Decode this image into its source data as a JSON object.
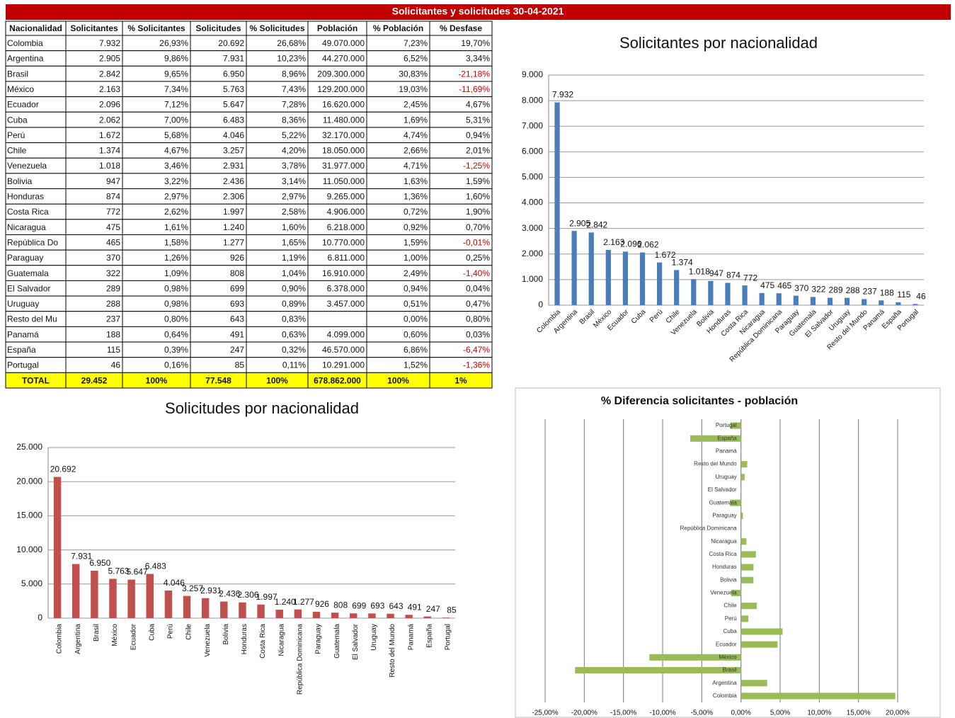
{
  "table": {
    "title": "Solicitantes y solicitudes 30-04-2021",
    "columns": [
      "Nacionalidad",
      "Solicitantes",
      "% Solicitantes",
      "Solicitudes",
      "% Solicitudes",
      "Población",
      "% Población",
      "% Desfase"
    ],
    "rows": [
      [
        "Colombia",
        "7.932",
        "26,93%",
        "20.692",
        "26,68%",
        "49.070.000",
        "7,23%",
        "19,70%"
      ],
      [
        "Argentina",
        "2.905",
        "9,86%",
        "7.931",
        "10,23%",
        "44.270.000",
        "6,52%",
        "3,34%"
      ],
      [
        "Brasil",
        "2.842",
        "9,65%",
        "6.950",
        "8,96%",
        "209.300.000",
        "30,83%",
        "-21,18%"
      ],
      [
        "México",
        "2.163",
        "7,34%",
        "5.763",
        "7,43%",
        "129.200.000",
        "19,03%",
        "-11,69%"
      ],
      [
        "Ecuador",
        "2.096",
        "7,12%",
        "5.647",
        "7,28%",
        "16.620.000",
        "2,45%",
        "4,67%"
      ],
      [
        "Cuba",
        "2.062",
        "7,00%",
        "6.483",
        "8,36%",
        "11.480.000",
        "1,69%",
        "5,31%"
      ],
      [
        "Perú",
        "1.672",
        "5,68%",
        "4.046",
        "5,22%",
        "32.170.000",
        "4,74%",
        "0,94%"
      ],
      [
        "Chile",
        "1.374",
        "4,67%",
        "3.257",
        "4,20%",
        "18.050.000",
        "2,66%",
        "2,01%"
      ],
      [
        "Venezuela",
        "1.018",
        "3,46%",
        "2.931",
        "3,78%",
        "31.977.000",
        "4,71%",
        "-1,25%"
      ],
      [
        "Bolivia",
        "947",
        "3,22%",
        "2.436",
        "3,14%",
        "11.050.000",
        "1,63%",
        "1,59%"
      ],
      [
        "Honduras",
        "874",
        "2,97%",
        "2.306",
        "2,97%",
        "9.265.000",
        "1,36%",
        "1,60%"
      ],
      [
        "Costa Rica",
        "772",
        "2,62%",
        "1.997",
        "2,58%",
        "4.906.000",
        "0,72%",
        "1,90%"
      ],
      [
        "Nicaragua",
        "475",
        "1,61%",
        "1.240",
        "1,60%",
        "6.218.000",
        "0,92%",
        "0,70%"
      ],
      [
        "República Do",
        "465",
        "1,58%",
        "1.277",
        "1,65%",
        "10.770.000",
        "1,59%",
        "-0,01%"
      ],
      [
        "Paraguay",
        "370",
        "1,26%",
        "926",
        "1,19%",
        "6.811.000",
        "1,00%",
        "0,25%"
      ],
      [
        "Guatemala",
        "322",
        "1,09%",
        "808",
        "1,04%",
        "16.910.000",
        "2,49%",
        "-1,40%"
      ],
      [
        "El Salvador",
        "289",
        "0,98%",
        "699",
        "0,90%",
        "6.378.000",
        "0,94%",
        "0,04%"
      ],
      [
        "Uruguay",
        "288",
        "0,98%",
        "693",
        "0,89%",
        "3.457.000",
        "0,51%",
        "0,47%"
      ],
      [
        "Resto del Mu",
        "237",
        "0,80%",
        "643",
        "0,83%",
        null,
        "0,00%",
        "0,80%"
      ],
      [
        "Panamá",
        "188",
        "0,64%",
        "491",
        "0,63%",
        "4.099.000",
        "0,60%",
        "0,03%"
      ],
      [
        "España",
        "115",
        "0,39%",
        "247",
        "0,32%",
        "46.570.000",
        "6,86%",
        "-6,47%"
      ],
      [
        "Portugal",
        "46",
        "0,16%",
        "85",
        "0,11%",
        "10.291.000",
        "1,52%",
        "-1,36%"
      ]
    ],
    "total": [
      "TOTAL",
      "29.452",
      "100%",
      "77.548",
      "100%",
      "678.862.000",
      "100%",
      "1%"
    ]
  },
  "chart_data": [
    {
      "type": "bar",
      "title": "Solicitantes por nacionalidad",
      "color": "#4a7ebb",
      "grid": true,
      "categories": [
        "Colombia",
        "Argentina",
        "Brasil",
        "México",
        "Ecuador",
        "Cuba",
        "Perú",
        "Chile",
        "Venezuela",
        "Bolivia",
        "Honduras",
        "Costa Rica",
        "Nicaragua",
        "República Dominicana",
        "Paraguay",
        "Guatemala",
        "El Salvador",
        "Uruguay",
        "Resto del Mundo",
        "Panamá",
        "España",
        "Portugal"
      ],
      "values": [
        7932,
        2905,
        2842,
        2163,
        2096,
        2062,
        1672,
        1374,
        1018,
        947,
        874,
        772,
        475,
        465,
        370,
        322,
        289,
        288,
        237,
        188,
        115,
        46
      ],
      "value_labels": [
        "7.932",
        "2.905",
        "2.842",
        "2.163",
        "2.096",
        "2.062",
        "1.672",
        "1.374",
        "1.018",
        "947",
        "874",
        "772",
        "475",
        "465",
        "370",
        "322",
        "289",
        "288",
        "237",
        "188",
        "115",
        "46"
      ],
      "ylim": [
        0,
        9000
      ],
      "yticks": [
        0,
        {
          "value": 1000,
          "label": "1.000"
        },
        {
          "value": 2000,
          "label": "2.000"
        },
        {
          "value": 3000,
          "label": "3.000"
        },
        {
          "value": 4000,
          "label": "4.000"
        },
        {
          "value": 5000,
          "label": "5.000"
        },
        {
          "value": 6000,
          "label": "6.000"
        },
        {
          "value": 7000,
          "label": "7.000"
        },
        {
          "value": 8000,
          "label": "8.000"
        },
        {
          "value": 9000,
          "label": "9.000"
        }
      ]
    },
    {
      "type": "bar",
      "title": "Solicitudes por nacionalidad",
      "color": "#c0504d",
      "grid": true,
      "categories": [
        "Colombia",
        "Argentina",
        "Brasil",
        "México",
        "Ecuador",
        "Cuba",
        "Perú",
        "Chile",
        "Venezuela",
        "Bolivia",
        "Honduras",
        "Costa Rica",
        "Nicaragua",
        "República Dominicana",
        "Paraguay",
        "Guatemala",
        "El Salvador",
        "Uruguay",
        "Resto del Mundo",
        "Panamá",
        "España",
        "Portugal"
      ],
      "values": [
        20692,
        7931,
        6950,
        5763,
        5647,
        6483,
        4046,
        3257,
        2931,
        2436,
        2306,
        1997,
        1240,
        1277,
        926,
        808,
        699,
        693,
        643,
        491,
        247,
        85
      ],
      "value_labels": [
        "20.692",
        "7.931",
        "6.950",
        "5.763",
        "5.647",
        "6.483",
        "4.046",
        "3.257",
        "2.931",
        "2.436",
        "2.306",
        "1.997",
        "1.240",
        "1.277",
        "926",
        "808",
        "699",
        "693",
        "643",
        "491",
        "247",
        "85"
      ],
      "ylim": [
        0,
        25000
      ],
      "yticks": [
        0,
        {
          "value": 5000,
          "label": "5.000"
        },
        {
          "value": 10000,
          "label": "10.000"
        },
        {
          "value": 15000,
          "label": "15.000"
        },
        {
          "value": 20000,
          "label": "20.000"
        },
        {
          "value": 25000,
          "label": "25.000"
        }
      ]
    },
    {
      "type": "barh",
      "title": "% Diferencia solicitantes - población",
      "color": "#9bbb59",
      "grid": true,
      "categories": [
        "Colombia",
        "Argentina",
        "Brasil",
        "México",
        "Ecuador",
        "Cuba",
        "Perú",
        "Chile",
        "Venezuela",
        "Bolivia",
        "Honduras",
        "Costa Rica",
        "Nicaragua",
        "República Dominicana",
        "Paraguay",
        "Guatemala",
        "El Salvador",
        "Uruguay",
        "Resto del Mundo",
        "Panamá",
        "España",
        "Portugal"
      ],
      "values": [
        19.7,
        3.34,
        -21.18,
        -11.69,
        4.67,
        5.31,
        0.94,
        2.01,
        -1.25,
        1.59,
        1.6,
        1.9,
        0.7,
        -0.01,
        0.25,
        -1.4,
        0.04,
        0.47,
        0.8,
        0.03,
        -6.47,
        -1.36
      ],
      "xlim": [
        -25,
        20
      ],
      "xticks": [
        {
          "value": -25,
          "label": "-25,00%"
        },
        {
          "value": -20,
          "label": "-20,00%"
        },
        {
          "value": -15,
          "label": "-15,00%"
        },
        {
          "value": -10,
          "label": "-10,00%"
        },
        {
          "value": -5,
          "label": "-5,00%"
        },
        {
          "value": 0,
          "label": "0,00%"
        },
        {
          "value": 5,
          "label": "5,00%"
        },
        {
          "value": 10,
          "label": "10,00%"
        },
        {
          "value": 15,
          "label": "15,00%"
        },
        {
          "value": 20,
          "label": "20,00%"
        }
      ]
    }
  ]
}
